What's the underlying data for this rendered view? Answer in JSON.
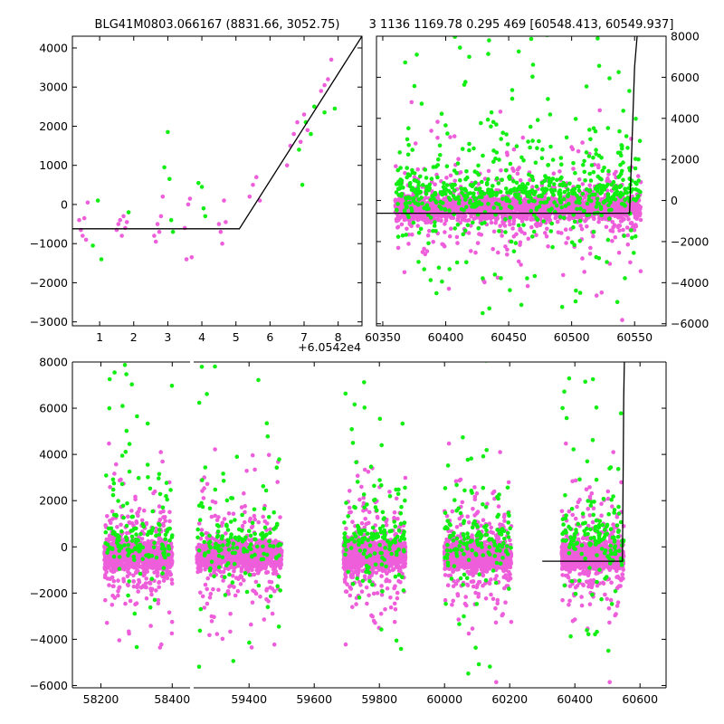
{
  "colors": {
    "series_a": "#ee5edb",
    "series_b": "#11ee11",
    "model_line": "#000000",
    "background": "#ffffff"
  },
  "chart_data": [
    {
      "id": "zoom",
      "type": "scatter",
      "title": "BLG41M0803.066167 (8831.66, 3052.75)",
      "xlim": [
        0.2,
        8.7
      ],
      "ylim": [
        -3100,
        4300
      ],
      "xticks": [
        "1",
        "2",
        "3",
        "4",
        "5",
        "6",
        "7",
        "8"
      ],
      "yticks": [
        "−3000",
        "−2000",
        "−1000",
        "0",
        "1000",
        "2000",
        "3000",
        "4000"
      ],
      "x_offset_label": "+6.0542e4",
      "model": {
        "x": [
          0.2,
          5.1,
          8.7
        ],
        "y": [
          -620,
          -620,
          4300
        ]
      },
      "series": [
        {
          "color": "magenta",
          "x": [
            0.4,
            0.45,
            0.5,
            0.55,
            0.6,
            0.65,
            1.5,
            1.55,
            1.6,
            1.65,
            1.7,
            1.75,
            1.8,
            2.6,
            2.65,
            2.7,
            2.75,
            2.8,
            2.85,
            3.5,
            3.55,
            3.6,
            3.65,
            3.7,
            4.5,
            4.55,
            4.6,
            4.65,
            4.7,
            5.4,
            5.5,
            5.6,
            5.7,
            6.5,
            6.6,
            6.7,
            6.8,
            6.9,
            7.0,
            7.1,
            7.5,
            7.6,
            7.7,
            7.8
          ],
          "y": [
            -400,
            -650,
            -800,
            -350,
            -900,
            50,
            -650,
            -500,
            -400,
            -800,
            -300,
            -600,
            -450,
            -800,
            -950,
            -500,
            -700,
            -300,
            200,
            -600,
            -1400,
            0,
            150,
            -1350,
            -500,
            -700,
            -1000,
            100,
            -450,
            200,
            500,
            700,
            100,
            1000,
            1500,
            1800,
            2100,
            1600,
            2300,
            1900,
            2900,
            3050,
            3200,
            3700
          ]
        },
        {
          "color": "green",
          "x": [
            0.8,
            0.95,
            1.05,
            1.85,
            2.9,
            3.0,
            3.05,
            3.1,
            3.15,
            3.9,
            4.0,
            4.05,
            4.1,
            6.85,
            6.95,
            7.05,
            7.2,
            7.3,
            7.6,
            7.9
          ],
          "y": [
            -1050,
            100,
            -1400,
            -200,
            950,
            1850,
            650,
            -400,
            -700,
            550,
            450,
            -100,
            -300,
            1400,
            500,
            2100,
            1800,
            2500,
            2350,
            2450
          ]
        }
      ]
    },
    {
      "id": "recent",
      "type": "scatter",
      "title": "3 1136 1169.78 0.295 469 [60548.413, 60549.937]",
      "xlim": [
        60345,
        60575
      ],
      "ylim": [
        -6100,
        8000
      ],
      "xticks": [
        "60350",
        "60400",
        "60450",
        "60500",
        "60550"
      ],
      "yticks": [
        "−6000",
        "−4000",
        "−2000",
        "0",
        "2000",
        "4000",
        "6000",
        "8000"
      ],
      "model": {
        "x": [
          60345,
          60546,
          60550,
          60552
        ],
        "y": [
          -620,
          -620,
          6500,
          8000
        ]
      },
      "seasons": [
        [
          60360,
          60555
        ]
      ],
      "n_points": {
        "magenta": 2400,
        "green": 700
      }
    },
    {
      "id": "full",
      "type": "scatter",
      "title": "",
      "xlim": [
        58120,
        60680
      ],
      "ylim": [
        -6100,
        8000
      ],
      "xticks": [
        "58200",
        "58400",
        "59400",
        "59600",
        "59800",
        "60000",
        "60200",
        "60400",
        "60600"
      ],
      "yticks": [
        "−6000",
        "−4000",
        "−2000",
        "0",
        "2000",
        "4000",
        "6000",
        "8000"
      ],
      "seasons": [
        [
          58210,
          58400
        ],
        [
          59240,
          59500
        ],
        [
          59690,
          59880
        ],
        [
          60000,
          60205
        ],
        [
          60360,
          60550
        ]
      ],
      "model": {
        "x": [
          60300,
          60546,
          60550,
          60552
        ],
        "y": [
          -620,
          -620,
          6500,
          8000
        ]
      },
      "n_points_per_season": {
        "magenta": 1400,
        "green": 160
      }
    }
  ]
}
